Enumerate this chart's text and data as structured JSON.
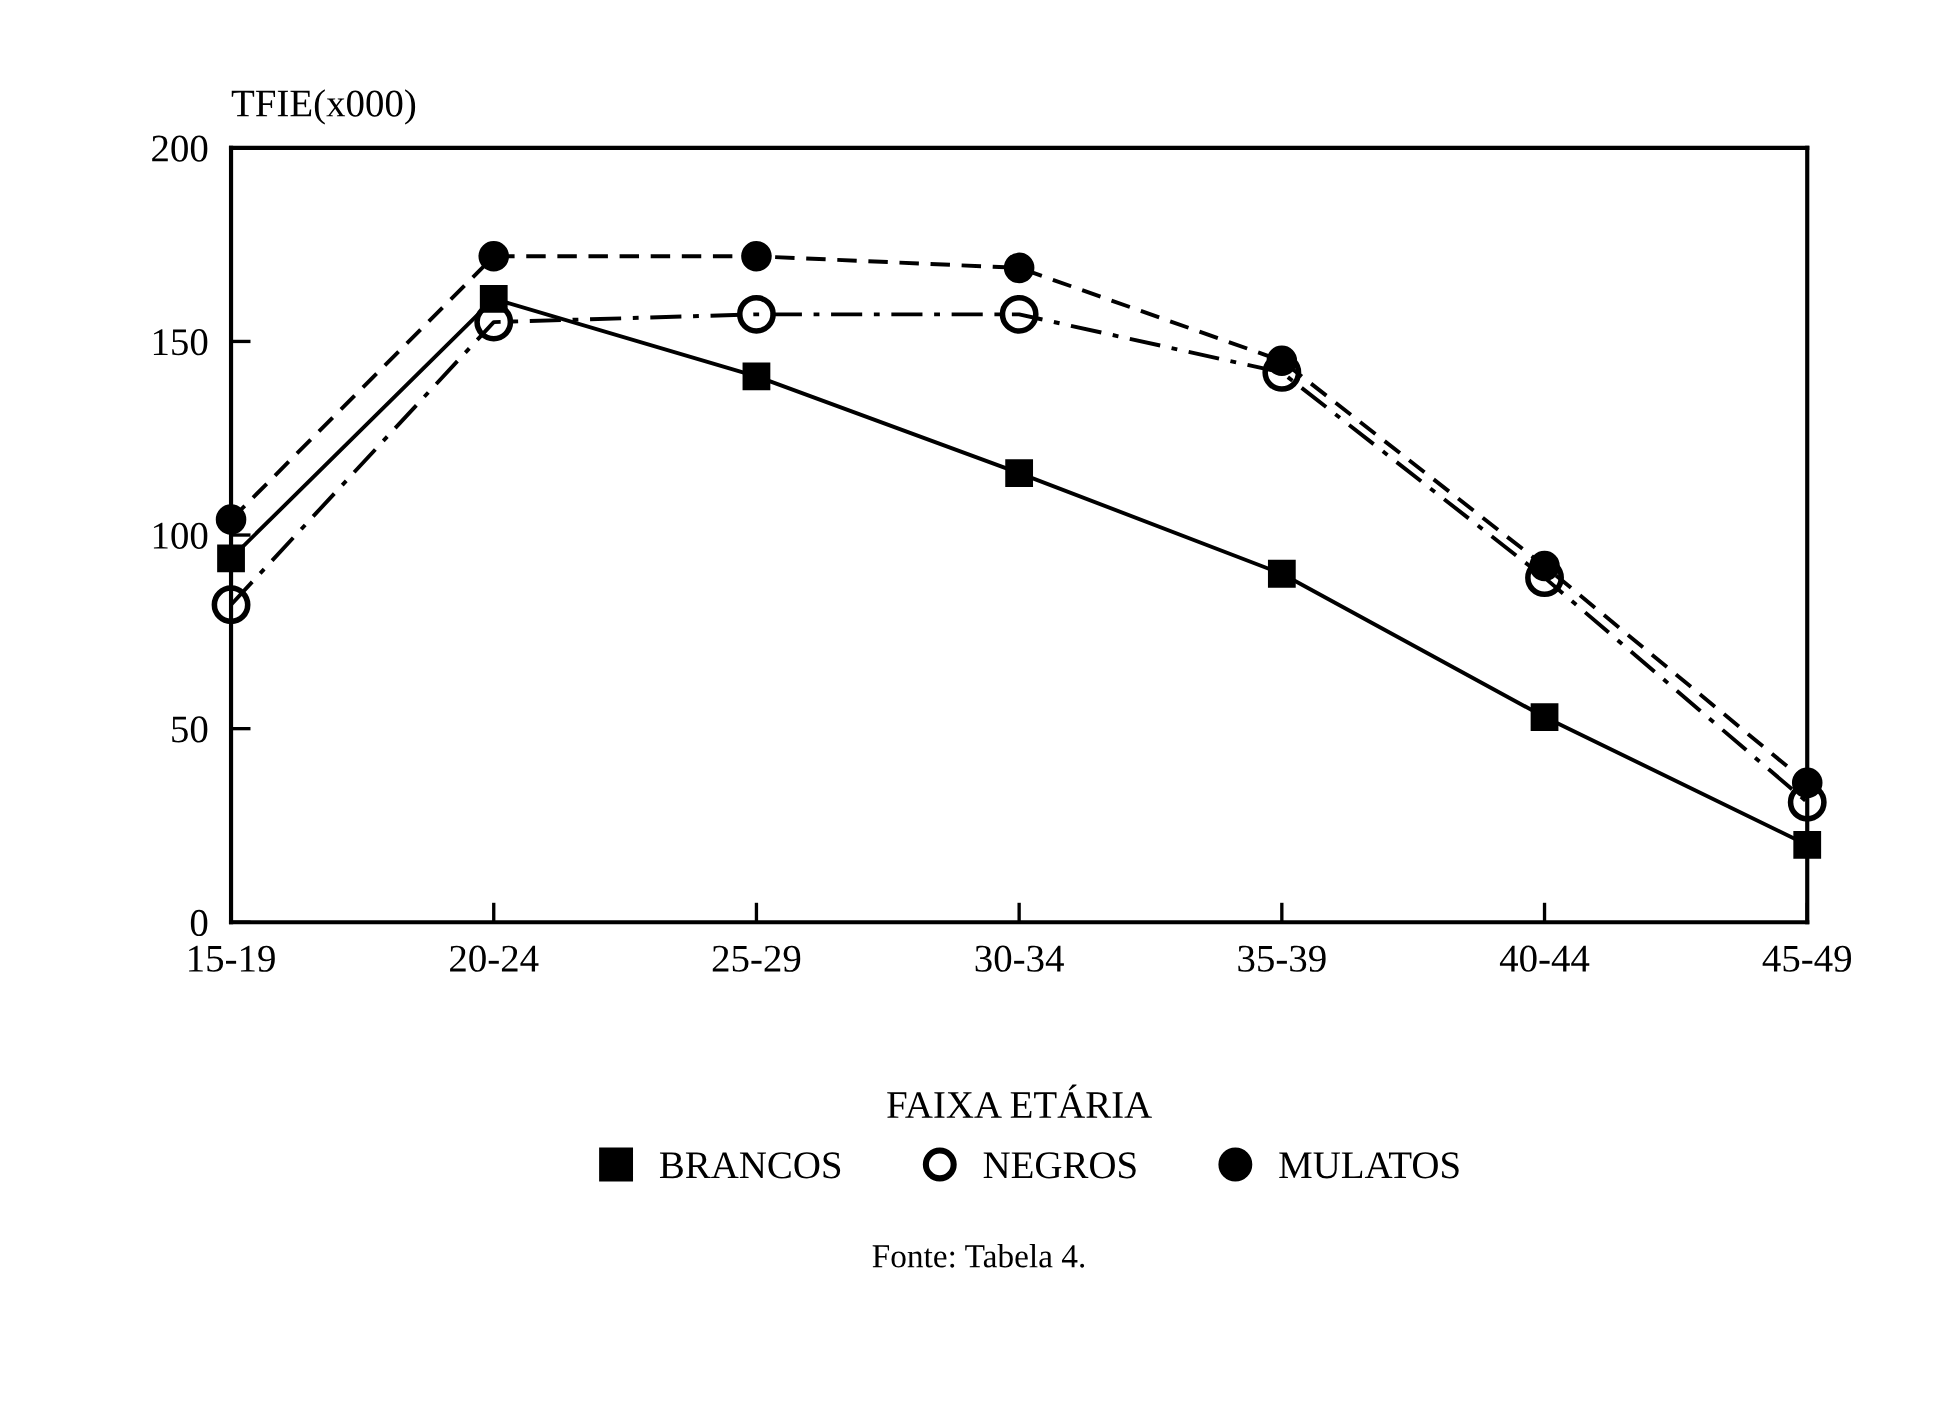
{
  "chart_data": {
    "type": "line",
    "ylabel": "TFIE(x000)",
    "xlabel": "FAIXA ETÁRIA",
    "categories": [
      "15-19",
      "20-24",
      "25-29",
      "30-34",
      "35-39",
      "40-44",
      "45-49"
    ],
    "series": [
      {
        "name": "BRANCOS",
        "color": "#000000",
        "marker": "square",
        "line_style": "solid",
        "values": [
          94,
          161,
          141,
          116,
          90,
          53,
          20
        ]
      },
      {
        "name": "NEGROS",
        "color": "#000000",
        "marker": "open circle",
        "line_style": "dashdot",
        "values": [
          82,
          155,
          157,
          157,
          142,
          89,
          31
        ]
      },
      {
        "name": "MULATOS",
        "color": "#000000",
        "marker": "circle",
        "line_style": "dashed",
        "values": [
          104,
          172,
          172,
          169,
          145,
          92,
          36
        ]
      }
    ],
    "ylim": [
      0,
      200
    ],
    "yticks": [
      0,
      50,
      100,
      150,
      200
    ],
    "grid": false,
    "legend": "bottom",
    "annotations": [
      "Fonte: Tabela 4."
    ]
  }
}
